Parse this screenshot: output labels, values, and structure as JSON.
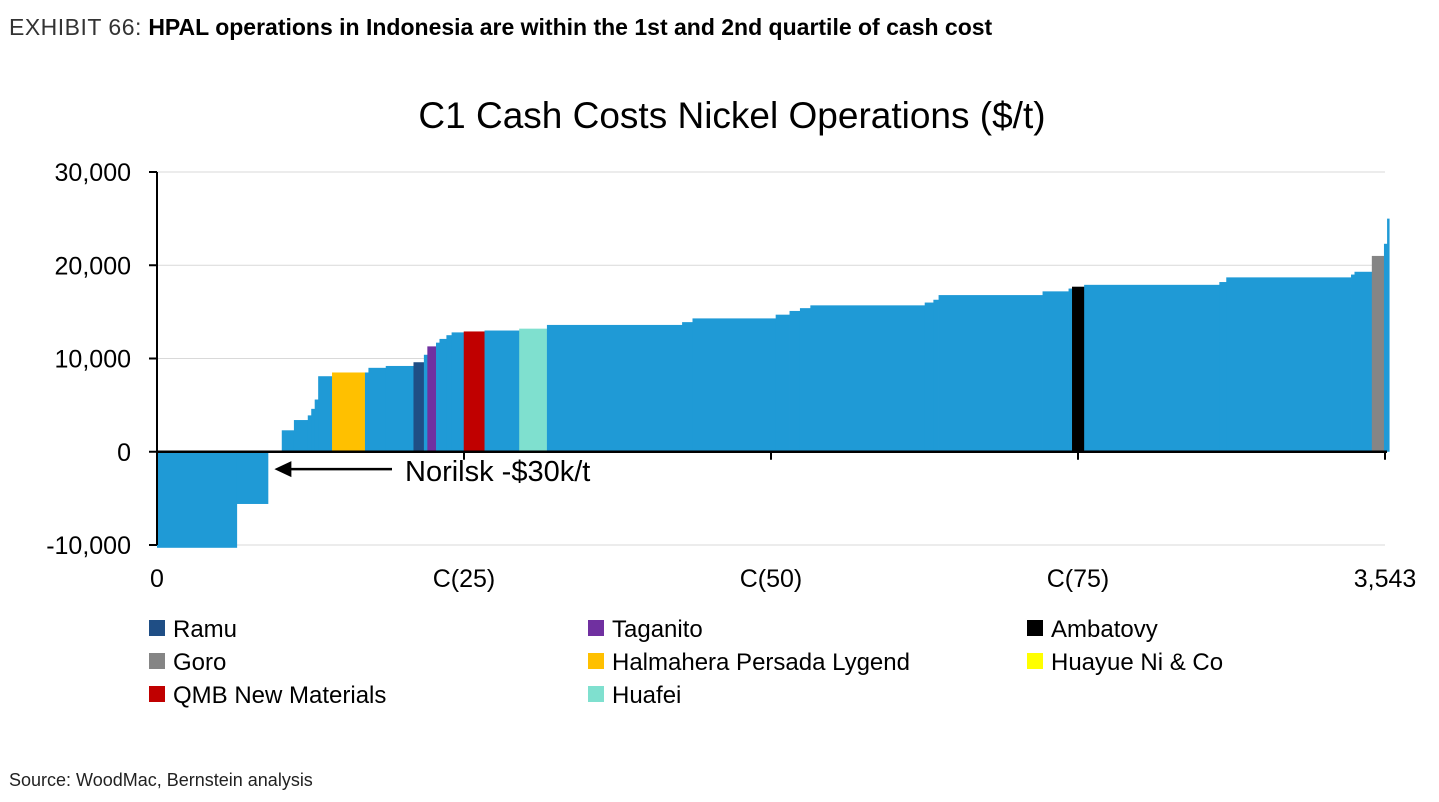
{
  "exhibit": {
    "label": "EXHIBIT 66:",
    "title": "HPAL operations in Indonesia are within the 1st and 2nd quartile of cash cost"
  },
  "source": "Source: WoodMac, Bernstein analysis",
  "chart_data": {
    "type": "bar",
    "subtype": "cost-curve (variable-width bars)",
    "title": "C1 Cash Costs Nickel Operations ($/t)",
    "xlabel": "",
    "ylabel": "",
    "ylim": [
      -10000,
      30000
    ],
    "xlim": [
      0,
      3543
    ],
    "y_ticks": [
      30000,
      20000,
      10000,
      0,
      -10000
    ],
    "y_tick_labels": [
      "30,000",
      "20,000",
      "10,000",
      "0",
      "-10,000"
    ],
    "x_ticks": [
      0,
      885.75,
      1771.5,
      2657.25,
      3543
    ],
    "x_tick_labels": [
      "0",
      "C(25)",
      "C(50)",
      "C(75)",
      "3,543"
    ],
    "grid": "horizontal",
    "legend_position": "bottom",
    "colors": {
      "base": "#1f9ad6",
      "Ramu": "#1f4e85",
      "Taganito": "#7030a0",
      "Ambatovy": "#000000",
      "Goro": "#858585",
      "Halmahera Persada Lygend": "#ffc000",
      "Huayue Ni & Co": "#ffff00",
      "QMB New Materials": "#c00000",
      "Huafei": "#7fe0cf"
    },
    "segments": [
      {
        "x0": 0,
        "x1": 230,
        "value": -10300
      },
      {
        "x0": 230,
        "x1": 320,
        "value": -5600
      },
      {
        "x0": 320,
        "x1": 360,
        "value": 0
      },
      {
        "x0": 360,
        "x1": 395,
        "value": 2300
      },
      {
        "x0": 395,
        "x1": 435,
        "value": 3400
      },
      {
        "x0": 435,
        "x1": 445,
        "value": 3900
      },
      {
        "x0": 445,
        "x1": 455,
        "value": 4600
      },
      {
        "x0": 455,
        "x1": 465,
        "value": 5600
      },
      {
        "x0": 465,
        "x1": 505,
        "value": 8100
      },
      {
        "x0": 505,
        "x1": 600,
        "value": 8500,
        "name": "Halmahera Persada Lygend"
      },
      {
        "x0": 600,
        "x1": 610,
        "value": 8500
      },
      {
        "x0": 610,
        "x1": 660,
        "value": 9000
      },
      {
        "x0": 660,
        "x1": 740,
        "value": 9200
      },
      {
        "x0": 740,
        "x1": 770,
        "value": 9600,
        "name": "Ramu"
      },
      {
        "x0": 770,
        "x1": 780,
        "value": 10400
      },
      {
        "x0": 780,
        "x1": 805,
        "value": 11300,
        "name": "Taganito"
      },
      {
        "x0": 805,
        "x1": 815,
        "value": 11700
      },
      {
        "x0": 815,
        "x1": 835,
        "value": 12100
      },
      {
        "x0": 835,
        "x1": 850,
        "value": 12500
      },
      {
        "x0": 850,
        "x1": 885,
        "value": 12800
      },
      {
        "x0": 885,
        "x1": 945,
        "value": 12900,
        "name": "QMB New Materials"
      },
      {
        "x0": 945,
        "x1": 1045,
        "value": 13000
      },
      {
        "x0": 1045,
        "x1": 1125,
        "value": 13200,
        "name": "Huafei"
      },
      {
        "x0": 1125,
        "x1": 1515,
        "value": 13600
      },
      {
        "x0": 1515,
        "x1": 1545,
        "value": 13900
      },
      {
        "x0": 1545,
        "x1": 1785,
        "value": 14300
      },
      {
        "x0": 1785,
        "x1": 1825,
        "value": 14700
      },
      {
        "x0": 1825,
        "x1": 1855,
        "value": 15100
      },
      {
        "x0": 1855,
        "x1": 1885,
        "value": 15400
      },
      {
        "x0": 1885,
        "x1": 2215,
        "value": 15700
      },
      {
        "x0": 2215,
        "x1": 2240,
        "value": 16000
      },
      {
        "x0": 2240,
        "x1": 2255,
        "value": 16300
      },
      {
        "x0": 2255,
        "x1": 2555,
        "value": 16800
      },
      {
        "x0": 2555,
        "x1": 2630,
        "value": 17200
      },
      {
        "x0": 2630,
        "x1": 2640,
        "value": 17500
      },
      {
        "x0": 2640,
        "x1": 2675,
        "value": 17700,
        "name": "Ambatovy"
      },
      {
        "x0": 2675,
        "x1": 3065,
        "value": 17900
      },
      {
        "x0": 3065,
        "x1": 3085,
        "value": 18200
      },
      {
        "x0": 3085,
        "x1": 3445,
        "value": 18700
      },
      {
        "x0": 3445,
        "x1": 3455,
        "value": 19000
      },
      {
        "x0": 3455,
        "x1": 3505,
        "value": 19300
      },
      {
        "x0": 3505,
        "x1": 3540,
        "value": 21000,
        "name": "Goro"
      },
      {
        "x0": 3540,
        "x1": 3549,
        "value": 22300
      },
      {
        "x0": 3549,
        "x1": 3555,
        "value": 25000
      }
    ],
    "annotations": [
      {
        "text": "Norilsk -$30k/t",
        "x": 330,
        "y": -2500,
        "arrow": "left"
      }
    ],
    "legend": [
      {
        "name": "Ramu",
        "color": "#1f4e85"
      },
      {
        "name": "Taganito",
        "color": "#7030a0"
      },
      {
        "name": "Ambatovy",
        "color": "#000000"
      },
      {
        "name": "Goro",
        "color": "#858585"
      },
      {
        "name": "Halmahera Persada Lygend",
        "color": "#ffc000"
      },
      {
        "name": "Huayue Ni & Co",
        "color": "#ffff00"
      },
      {
        "name": "QMB New Materials",
        "color": "#c00000"
      },
      {
        "name": "Huafei",
        "color": "#7fe0cf"
      }
    ]
  }
}
